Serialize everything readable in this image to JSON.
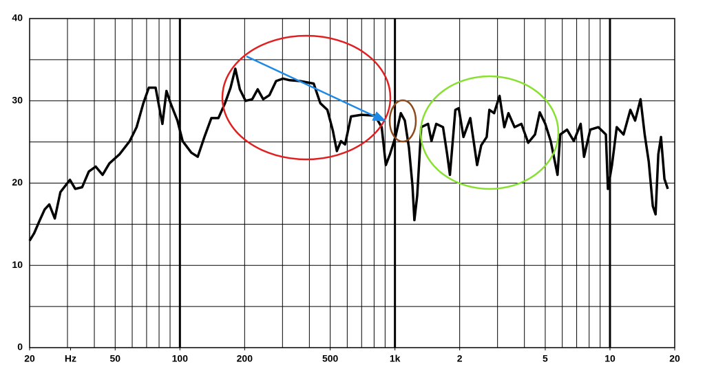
{
  "chart_data": {
    "type": "line",
    "x": [
      20,
      21,
      22.3,
      23.5,
      24.7,
      26.2,
      27.8,
      30.8,
      32.6,
      35.1,
      37.7,
      40.6,
      43.7,
      47,
      52.4,
      58.4,
      62.9,
      67.6,
      71.7,
      77.1,
      81.1,
      82.9,
      86.6,
      90.5,
      97.4,
      103,
      113,
      121,
      130,
      140,
      151,
      162,
      172,
      181,
      190,
      202,
      217,
      230,
      244,
      261,
      280,
      302,
      324,
      362,
      419,
      450,
      485,
      514,
      537,
      561,
      586,
      625,
      698,
      807,
      868,
      907,
      948,
      1005,
      1065,
      1112,
      1162,
      1206,
      1232,
      1269,
      1325,
      1426,
      1479,
      1556,
      1674,
      1749,
      1801,
      1909,
      1980,
      2084,
      2241,
      2410,
      2519,
      2670,
      2749,
      2892,
      3066,
      3226,
      3371,
      3600,
      3873,
      4166,
      4481,
      4716,
      5000,
      5300,
      5701,
      5870,
      6315,
      6793,
      7306,
      7577,
      8093,
      8832,
      9568,
      9780,
      10218,
      10752,
      11564,
      12440,
      13092,
      13878,
      14498,
      15146,
      15824,
      16293,
      16777,
      17275,
      17917,
      18580
    ],
    "values": [
      13.0,
      13.9,
      15.5,
      16.8,
      17.4,
      15.7,
      18.9,
      20.4,
      19.3,
      19.5,
      21.4,
      22.0,
      21.0,
      22.4,
      23.5,
      25.1,
      26.8,
      29.7,
      31.6,
      31.6,
      28.5,
      27.2,
      31.2,
      29.7,
      27.6,
      25.1,
      23.7,
      23.2,
      25.6,
      27.9,
      27.9,
      29.7,
      31.6,
      33.9,
      31.4,
      30.0,
      30.2,
      31.4,
      30.2,
      30.7,
      32.4,
      32.7,
      32.5,
      32.4,
      32.1,
      29.7,
      28.9,
      26.4,
      23.9,
      25.1,
      24.7,
      28.1,
      28.3,
      28.2,
      26.8,
      22.2,
      23.5,
      25.6,
      28.5,
      27.6,
      24.3,
      19.7,
      15.5,
      18.5,
      26.8,
      27.2,
      25.1,
      27.2,
      26.8,
      23.5,
      21.0,
      28.9,
      29.1,
      25.6,
      27.9,
      22.2,
      24.6,
      25.6,
      28.9,
      28.5,
      30.6,
      26.8,
      28.5,
      26.8,
      27.2,
      24.9,
      25.9,
      28.6,
      27.2,
      25.1,
      21.0,
      25.9,
      26.5,
      25.1,
      27.2,
      23.2,
      26.5,
      26.8,
      25.9,
      19.3,
      22.2,
      26.8,
      25.9,
      28.9,
      27.6,
      30.2,
      25.9,
      22.6,
      17.2,
      16.2,
      23.5,
      25.6,
      20.5,
      19.3
    ],
    "color": "#000000",
    "xlim": [
      20,
      20000
    ],
    "ylim": [
      0,
      40
    ],
    "xticks": [
      20,
      {
        "value": 31,
        "label": "Hz"
      },
      50,
      100,
      200,
      500,
      {
        "value": 1000,
        "label": "1k"
      },
      {
        "value": 2000,
        "label": "2"
      },
      {
        "value": 5000,
        "label": "5"
      },
      {
        "value": 10000,
        "label": "10"
      },
      {
        "value": 20000,
        "label": "20"
      }
    ],
    "yticks": [
      0,
      10,
      20,
      30,
      40
    ],
    "x_log": true,
    "grid": true
  }
}
